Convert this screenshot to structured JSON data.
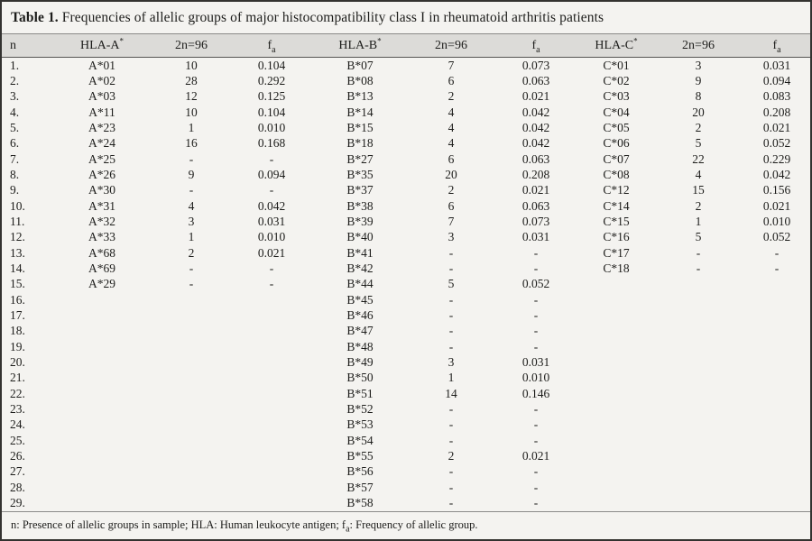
{
  "colors": {
    "outer_border": "#333230",
    "rule": "#8a8a88",
    "rule_dark": "#565553",
    "header_bg": "#dcdbd8",
    "body_bg": "#f4f3f0",
    "text": "#1d1d1b"
  },
  "caption": {
    "label": "Table 1.",
    "text": " Frequencies of allelic groups of major histocompatibility class I in rheumatoid arthritis patients"
  },
  "header": {
    "n": "n",
    "a": {
      "allele": "HLA-A",
      "sup": "*",
      "count": "2n=96",
      "freq": "f",
      "freq_sub": "a"
    },
    "b": {
      "allele": "HLA-B",
      "sup": "*",
      "count": "2n=96",
      "freq": "f",
      "freq_sub": "a"
    },
    "c": {
      "allele": "HLA-C",
      "sup": "*",
      "count": "2n=96",
      "freq": "f",
      "freq_sub": "a"
    }
  },
  "rows": [
    {
      "n": "1.",
      "aa": "A*01",
      "an": "10",
      "af": "0.104",
      "ba": "B*07",
      "bn": "7",
      "bf": "0.073",
      "ca": "C*01",
      "cn": "3",
      "cf": "0.031"
    },
    {
      "n": "2.",
      "aa": "A*02",
      "an": "28",
      "af": "0.292",
      "ba": "B*08",
      "bn": "6",
      "bf": "0.063",
      "ca": "C*02",
      "cn": "9",
      "cf": "0.094"
    },
    {
      "n": "3.",
      "aa": "A*03",
      "an": "12",
      "af": "0.125",
      "ba": "B*13",
      "bn": "2",
      "bf": "0.021",
      "ca": "C*03",
      "cn": "8",
      "cf": "0.083"
    },
    {
      "n": "4.",
      "aa": "A*11",
      "an": "10",
      "af": "0.104",
      "ba": "B*14",
      "bn": "4",
      "bf": "0.042",
      "ca": "C*04",
      "cn": "20",
      "cf": "0.208"
    },
    {
      "n": "5.",
      "aa": "A*23",
      "an": "1",
      "af": "0.010",
      "ba": "B*15",
      "bn": "4",
      "bf": "0.042",
      "ca": "C*05",
      "cn": "2",
      "cf": "0.021"
    },
    {
      "n": "6.",
      "aa": "A*24",
      "an": "16",
      "af": "0.168",
      "ba": "B*18",
      "bn": "4",
      "bf": "0.042",
      "ca": "C*06",
      "cn": "5",
      "cf": "0.052"
    },
    {
      "n": "7.",
      "aa": "A*25",
      "an": "-",
      "af": "-",
      "ba": "B*27",
      "bn": "6",
      "bf": "0.063",
      "ca": "C*07",
      "cn": "22",
      "cf": "0.229"
    },
    {
      "n": "8.",
      "aa": "A*26",
      "an": "9",
      "af": "0.094",
      "ba": "B*35",
      "bn": "20",
      "bf": "0.208",
      "ca": "C*08",
      "cn": "4",
      "cf": "0.042"
    },
    {
      "n": "9.",
      "aa": "A*30",
      "an": "-",
      "af": "-",
      "ba": "B*37",
      "bn": "2",
      "bf": "0.021",
      "ca": "C*12",
      "cn": "15",
      "cf": "0.156"
    },
    {
      "n": "10.",
      "aa": "A*31",
      "an": "4",
      "af": "0.042",
      "ba": "B*38",
      "bn": "6",
      "bf": "0.063",
      "ca": "C*14",
      "cn": "2",
      "cf": "0.021"
    },
    {
      "n": "11.",
      "aa": "A*32",
      "an": "3",
      "af": "0.031",
      "ba": "B*39",
      "bn": "7",
      "bf": "0.073",
      "ca": "C*15",
      "cn": "1",
      "cf": "0.010"
    },
    {
      "n": "12.",
      "aa": "A*33",
      "an": "1",
      "af": "0.010",
      "ba": "B*40",
      "bn": "3",
      "bf": "0.031",
      "ca": "C*16",
      "cn": "5",
      "cf": "0.052"
    },
    {
      "n": "13.",
      "aa": "A*68",
      "an": "2",
      "af": "0.021",
      "ba": "B*41",
      "bn": "-",
      "bf": "-",
      "ca": "C*17",
      "cn": "-",
      "cf": "-"
    },
    {
      "n": "14.",
      "aa": "A*69",
      "an": "-",
      "af": "-",
      "ba": "B*42",
      "bn": "-",
      "bf": "-",
      "ca": "C*18",
      "cn": "-",
      "cf": "-"
    },
    {
      "n": "15.",
      "aa": "A*29",
      "an": "-",
      "af": "-",
      "ba": "B*44",
      "bn": "5",
      "bf": "0.052",
      "ca": "",
      "cn": "",
      "cf": ""
    },
    {
      "n": "16.",
      "aa": "",
      "an": "",
      "af": "",
      "ba": "B*45",
      "bn": "-",
      "bf": "-",
      "ca": "",
      "cn": "",
      "cf": ""
    },
    {
      "n": "17.",
      "aa": "",
      "an": "",
      "af": "",
      "ba": "B*46",
      "bn": "-",
      "bf": "-",
      "ca": "",
      "cn": "",
      "cf": ""
    },
    {
      "n": "18.",
      "aa": "",
      "an": "",
      "af": "",
      "ba": "B*47",
      "bn": "-",
      "bf": "-",
      "ca": "",
      "cn": "",
      "cf": ""
    },
    {
      "n": "19.",
      "aa": "",
      "an": "",
      "af": "",
      "ba": "B*48",
      "bn": "-",
      "bf": "-",
      "ca": "",
      "cn": "",
      "cf": ""
    },
    {
      "n": "20.",
      "aa": "",
      "an": "",
      "af": "",
      "ba": "B*49",
      "bn": "3",
      "bf": "0.031",
      "ca": "",
      "cn": "",
      "cf": ""
    },
    {
      "n": "21.",
      "aa": "",
      "an": "",
      "af": "",
      "ba": "B*50",
      "bn": "1",
      "bf": "0.010",
      "ca": "",
      "cn": "",
      "cf": ""
    },
    {
      "n": "22.",
      "aa": "",
      "an": "",
      "af": "",
      "ba": "B*51",
      "bn": "14",
      "bf": "0.146",
      "ca": "",
      "cn": "",
      "cf": ""
    },
    {
      "n": "23.",
      "aa": "",
      "an": "",
      "af": "",
      "ba": "B*52",
      "bn": "-",
      "bf": "-",
      "ca": "",
      "cn": "",
      "cf": ""
    },
    {
      "n": "24.",
      "aa": "",
      "an": "",
      "af": "",
      "ba": "B*53",
      "bn": "-",
      "bf": "-",
      "ca": "",
      "cn": "",
      "cf": ""
    },
    {
      "n": "25.",
      "aa": "",
      "an": "",
      "af": "",
      "ba": "B*54",
      "bn": "-",
      "bf": "-",
      "ca": "",
      "cn": "",
      "cf": ""
    },
    {
      "n": "26.",
      "aa": "",
      "an": "",
      "af": "",
      "ba": "B*55",
      "bn": "2",
      "bf": "0.021",
      "ca": "",
      "cn": "",
      "cf": ""
    },
    {
      "n": "27.",
      "aa": "",
      "an": "",
      "af": "",
      "ba": "B*56",
      "bn": "-",
      "bf": "-",
      "ca": "",
      "cn": "",
      "cf": ""
    },
    {
      "n": "28.",
      "aa": "",
      "an": "",
      "af": "",
      "ba": "B*57",
      "bn": "-",
      "bf": "-",
      "ca": "",
      "cn": "",
      "cf": ""
    },
    {
      "n": "29.",
      "aa": "",
      "an": "",
      "af": "",
      "ba": "B*58",
      "bn": "-",
      "bf": "-",
      "ca": "",
      "cn": "",
      "cf": ""
    }
  ],
  "footnote": {
    "part1": "n: Presence of allelic groups in sample; HLA: Human leukocyte antigen; ",
    "f_base": "f",
    "f_sub": "a",
    "part2": ": Frequency of allelic group."
  }
}
